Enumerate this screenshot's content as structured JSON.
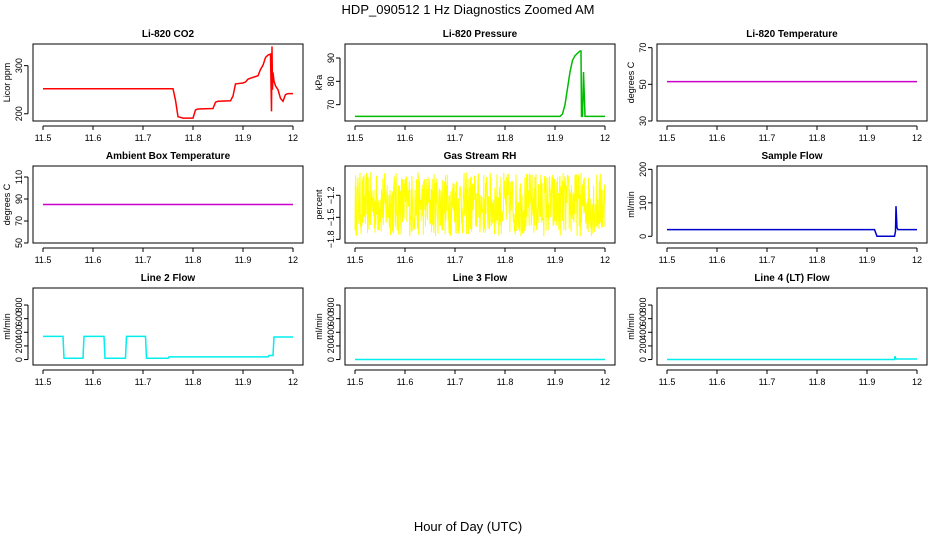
{
  "figure": {
    "title": "HDP_090512  1 Hz Diagnostics Zoomed AM",
    "xlabel": "Hour of Day (UTC)"
  },
  "chart_data": [
    {
      "type": "line",
      "title": "Li-820 CO2",
      "ylabel": "Licor ppm",
      "color": "#ff0000",
      "xlim": [
        11.5,
        12.0
      ],
      "ylim": [
        185,
        345
      ],
      "xticks": [
        11.5,
        11.6,
        11.7,
        11.8,
        11.9,
        12.0
      ],
      "yticks": [
        200,
        300
      ],
      "x": [
        11.5,
        11.76,
        11.765,
        11.77,
        11.78,
        11.79,
        11.8,
        11.805,
        11.81,
        11.84,
        11.845,
        11.85,
        11.875,
        11.88,
        11.885,
        11.9,
        11.905,
        11.91,
        11.915,
        11.93,
        11.935,
        11.94,
        11.945,
        11.95,
        11.955,
        11.957,
        11.958,
        11.959,
        11.96,
        11.962,
        11.965,
        11.97,
        11.975,
        11.98,
        11.985,
        11.99,
        12.0
      ],
      "y": [
        252,
        252,
        228,
        194,
        191,
        191,
        191,
        208,
        210,
        211,
        224,
        226,
        227,
        237,
        262,
        264,
        266,
        272,
        274,
        279,
        292,
        301,
        317,
        322,
        324,
        205,
        340,
        250,
        286,
        268,
        258,
        250,
        232,
        226,
        240,
        242,
        242
      ]
    },
    {
      "type": "line",
      "title": "Li-820 Pressure",
      "ylabel": "kPa",
      "color": "#00bb00",
      "xlim": [
        11.5,
        12.0
      ],
      "ylim": [
        63,
        96
      ],
      "xticks": [
        11.5,
        11.6,
        11.7,
        11.8,
        11.9,
        12.0
      ],
      "yticks": [
        70,
        80,
        90
      ],
      "x": [
        11.5,
        11.91,
        11.915,
        11.92,
        11.925,
        11.93,
        11.935,
        11.94,
        11.945,
        11.95,
        11.952,
        11.953,
        11.955,
        11.957,
        11.96,
        12.0
      ],
      "y": [
        65,
        65,
        66,
        70,
        77,
        84,
        89,
        91,
        92,
        93,
        93,
        65,
        65,
        84,
        65,
        65
      ]
    },
    {
      "type": "line",
      "title": "Li-820 Temperature",
      "ylabel": "degrees C",
      "color": "#cc00cc",
      "xlim": [
        11.5,
        12.0
      ],
      "ylim": [
        30,
        72
      ],
      "xticks": [
        11.5,
        11.6,
        11.7,
        11.8,
        11.9,
        12.0
      ],
      "yticks": [
        30,
        50,
        70
      ],
      "x": [
        11.5,
        12.0
      ],
      "y": [
        51.5,
        51.5
      ]
    },
    {
      "type": "line",
      "title": "Ambient Box Temperature",
      "ylabel": "degrees C",
      "color": "#cc00cc",
      "xlim": [
        11.5,
        12.0
      ],
      "ylim": [
        50,
        120
      ],
      "xticks": [
        11.5,
        11.6,
        11.7,
        11.8,
        11.9,
        12.0
      ],
      "yticks": [
        50,
        70,
        90,
        110
      ],
      "x": [
        11.5,
        12.0
      ],
      "y": [
        85,
        85
      ]
    },
    {
      "type": "line",
      "title": "Gas Stream RH",
      "ylabel": "percent",
      "color": "#ffff00",
      "xlim": [
        11.5,
        12.0
      ],
      "ylim": [
        -1.85,
        -0.8
      ],
      "xticks": [
        11.5,
        11.6,
        11.7,
        11.8,
        11.9,
        12.0
      ],
      "yticks": [
        -1.8,
        -1.5,
        -1.2
      ],
      "noise": {
        "center": -1.32,
        "amplitude": 0.44,
        "points": 700
      }
    },
    {
      "type": "line",
      "title": "Sample Flow",
      "ylabel": "ml/min",
      "color": "#0000cc",
      "xlim": [
        11.5,
        12.0
      ],
      "ylim": [
        -20,
        210
      ],
      "xticks": [
        11.5,
        11.6,
        11.7,
        11.8,
        11.9,
        12.0
      ],
      "yticks": [
        0,
        100,
        200
      ],
      "x": [
        11.5,
        11.915,
        11.92,
        11.955,
        11.957,
        11.958,
        11.96,
        11.962,
        11.965,
        12.0
      ],
      "y": [
        20,
        20,
        0,
        0,
        15,
        90,
        25,
        20,
        20,
        20
      ]
    },
    {
      "type": "line",
      "title": "Line 2 Flow",
      "ylabel": "ml/min",
      "color": "#00eeee",
      "xlim": [
        11.5,
        12.0
      ],
      "ylim": [
        -80,
        1050
      ],
      "xticks": [
        11.5,
        11.6,
        11.7,
        11.8,
        11.9,
        12.0
      ],
      "yticks": [
        0,
        200,
        400,
        600,
        800
      ],
      "x": [
        11.5,
        11.54,
        11.542,
        11.58,
        11.582,
        11.622,
        11.624,
        11.665,
        11.667,
        11.705,
        11.707,
        11.75,
        11.752,
        11.95,
        11.952,
        11.96,
        11.962,
        12.0
      ],
      "y": [
        340,
        340,
        20,
        20,
        340,
        340,
        20,
        20,
        340,
        340,
        20,
        20,
        40,
        40,
        60,
        60,
        330,
        330
      ]
    },
    {
      "type": "line",
      "title": "Line 3 Flow",
      "ylabel": "ml/min",
      "color": "#00eeee",
      "xlim": [
        11.5,
        12.0
      ],
      "ylim": [
        -80,
        1050
      ],
      "xticks": [
        11.5,
        11.6,
        11.7,
        11.8,
        11.9,
        12.0
      ],
      "yticks": [
        0,
        200,
        400,
        600,
        800
      ],
      "x": [
        11.5,
        12.0
      ],
      "y": [
        0,
        0
      ]
    },
    {
      "type": "line",
      "title": "Line 4 (LT) Flow",
      "ylabel": "ml/min",
      "color": "#00eeee",
      "xlim": [
        11.5,
        12.0
      ],
      "ylim": [
        -80,
        1050
      ],
      "xticks": [
        11.5,
        11.6,
        11.7,
        11.8,
        11.9,
        12.0
      ],
      "yticks": [
        0,
        200,
        400,
        600,
        800
      ],
      "x": [
        11.5,
        11.955,
        11.956,
        11.957,
        11.958,
        12.0
      ],
      "y": [
        0,
        0,
        50,
        25,
        8,
        8
      ]
    }
  ]
}
